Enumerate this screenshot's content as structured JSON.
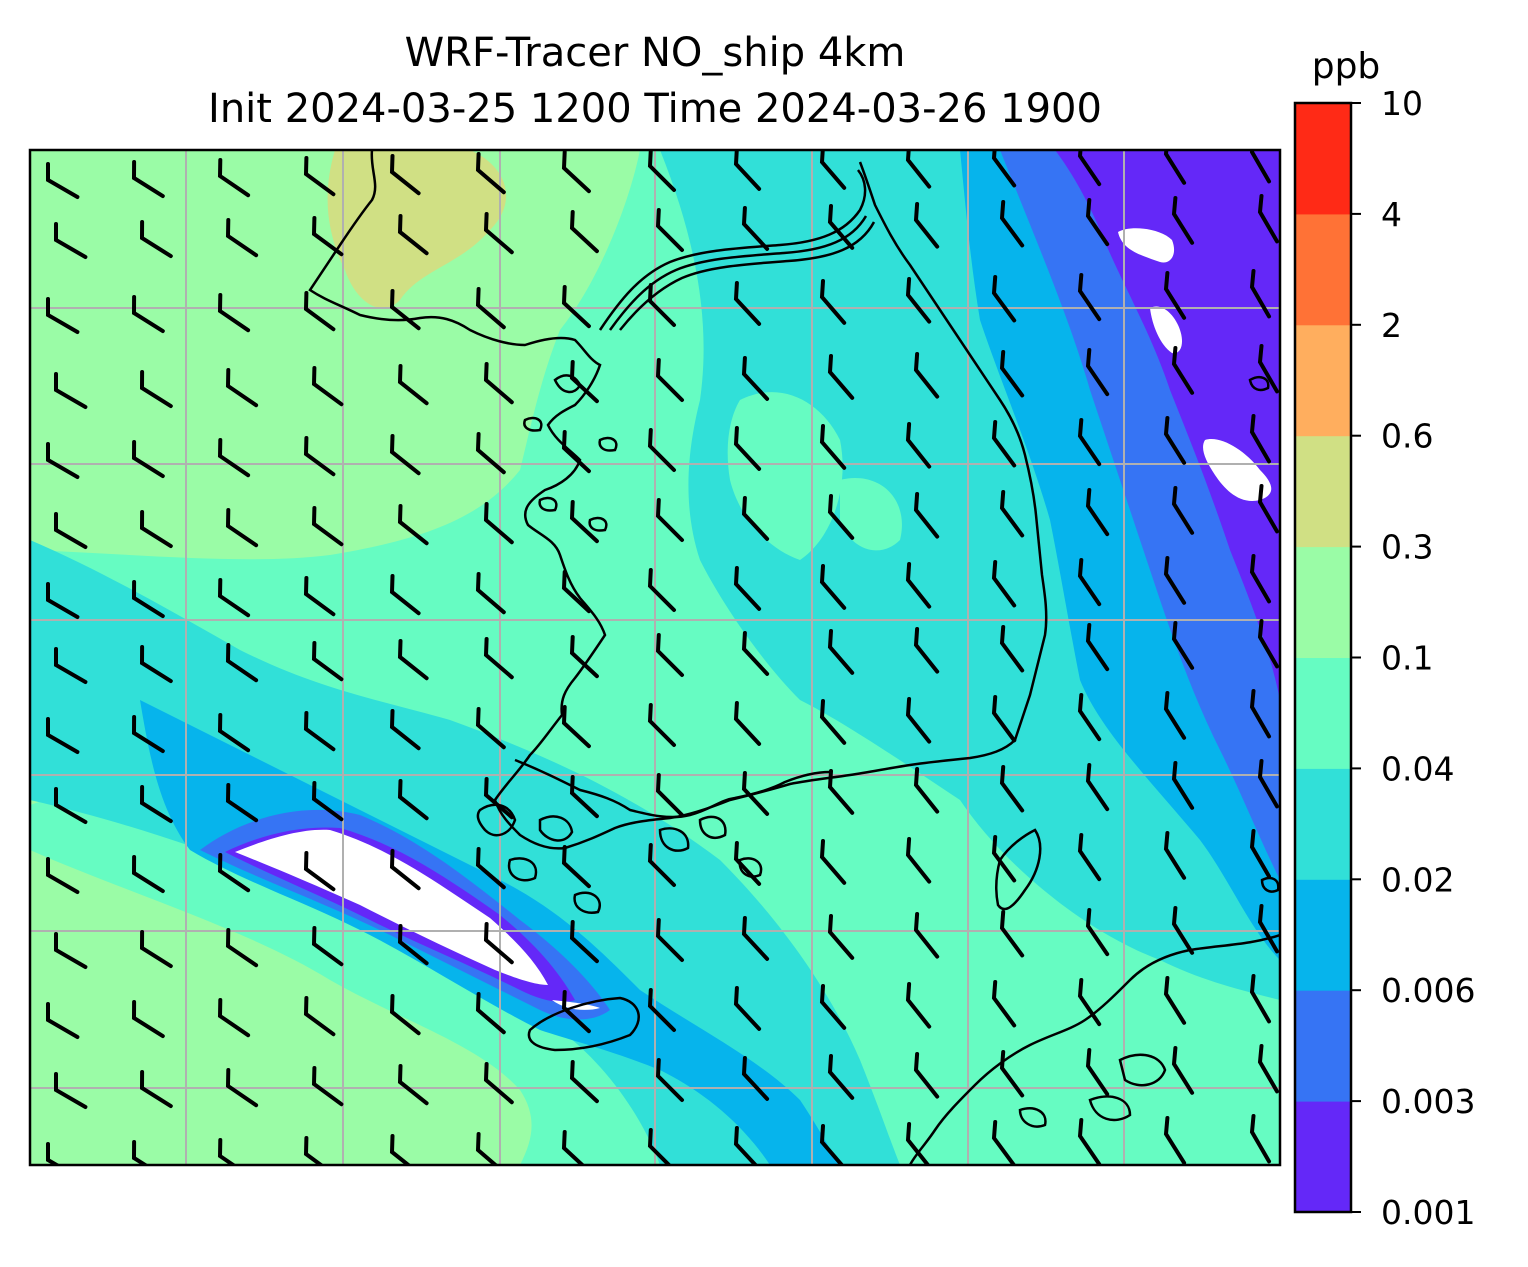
{
  "title": {
    "line1": "WRF-Tracer NO_ship 4km",
    "line2": "Init 2024-03-25 1200 Time 2024-03-26 1900"
  },
  "colorbar": {
    "unit": "ppb",
    "levels": [
      "0.001",
      "0.003",
      "0.006",
      "0.02",
      "0.04",
      "0.1",
      "0.3",
      "0.6",
      "2",
      "4",
      "10"
    ],
    "colors": [
      "#6428f8",
      "#3674f4",
      "#06b4ec",
      "#31e0d8",
      "#66fcc2",
      "#9afca6",
      "#d0e084",
      "#ffae5e",
      "#ff7236",
      "#ff2a16"
    ]
  },
  "map": {
    "field": "NO_ship tracer concentration",
    "overlays": [
      "coastlines",
      "gridlines",
      "wind-barbs"
    ],
    "wind_barb_direction": "northwesterly"
  }
}
